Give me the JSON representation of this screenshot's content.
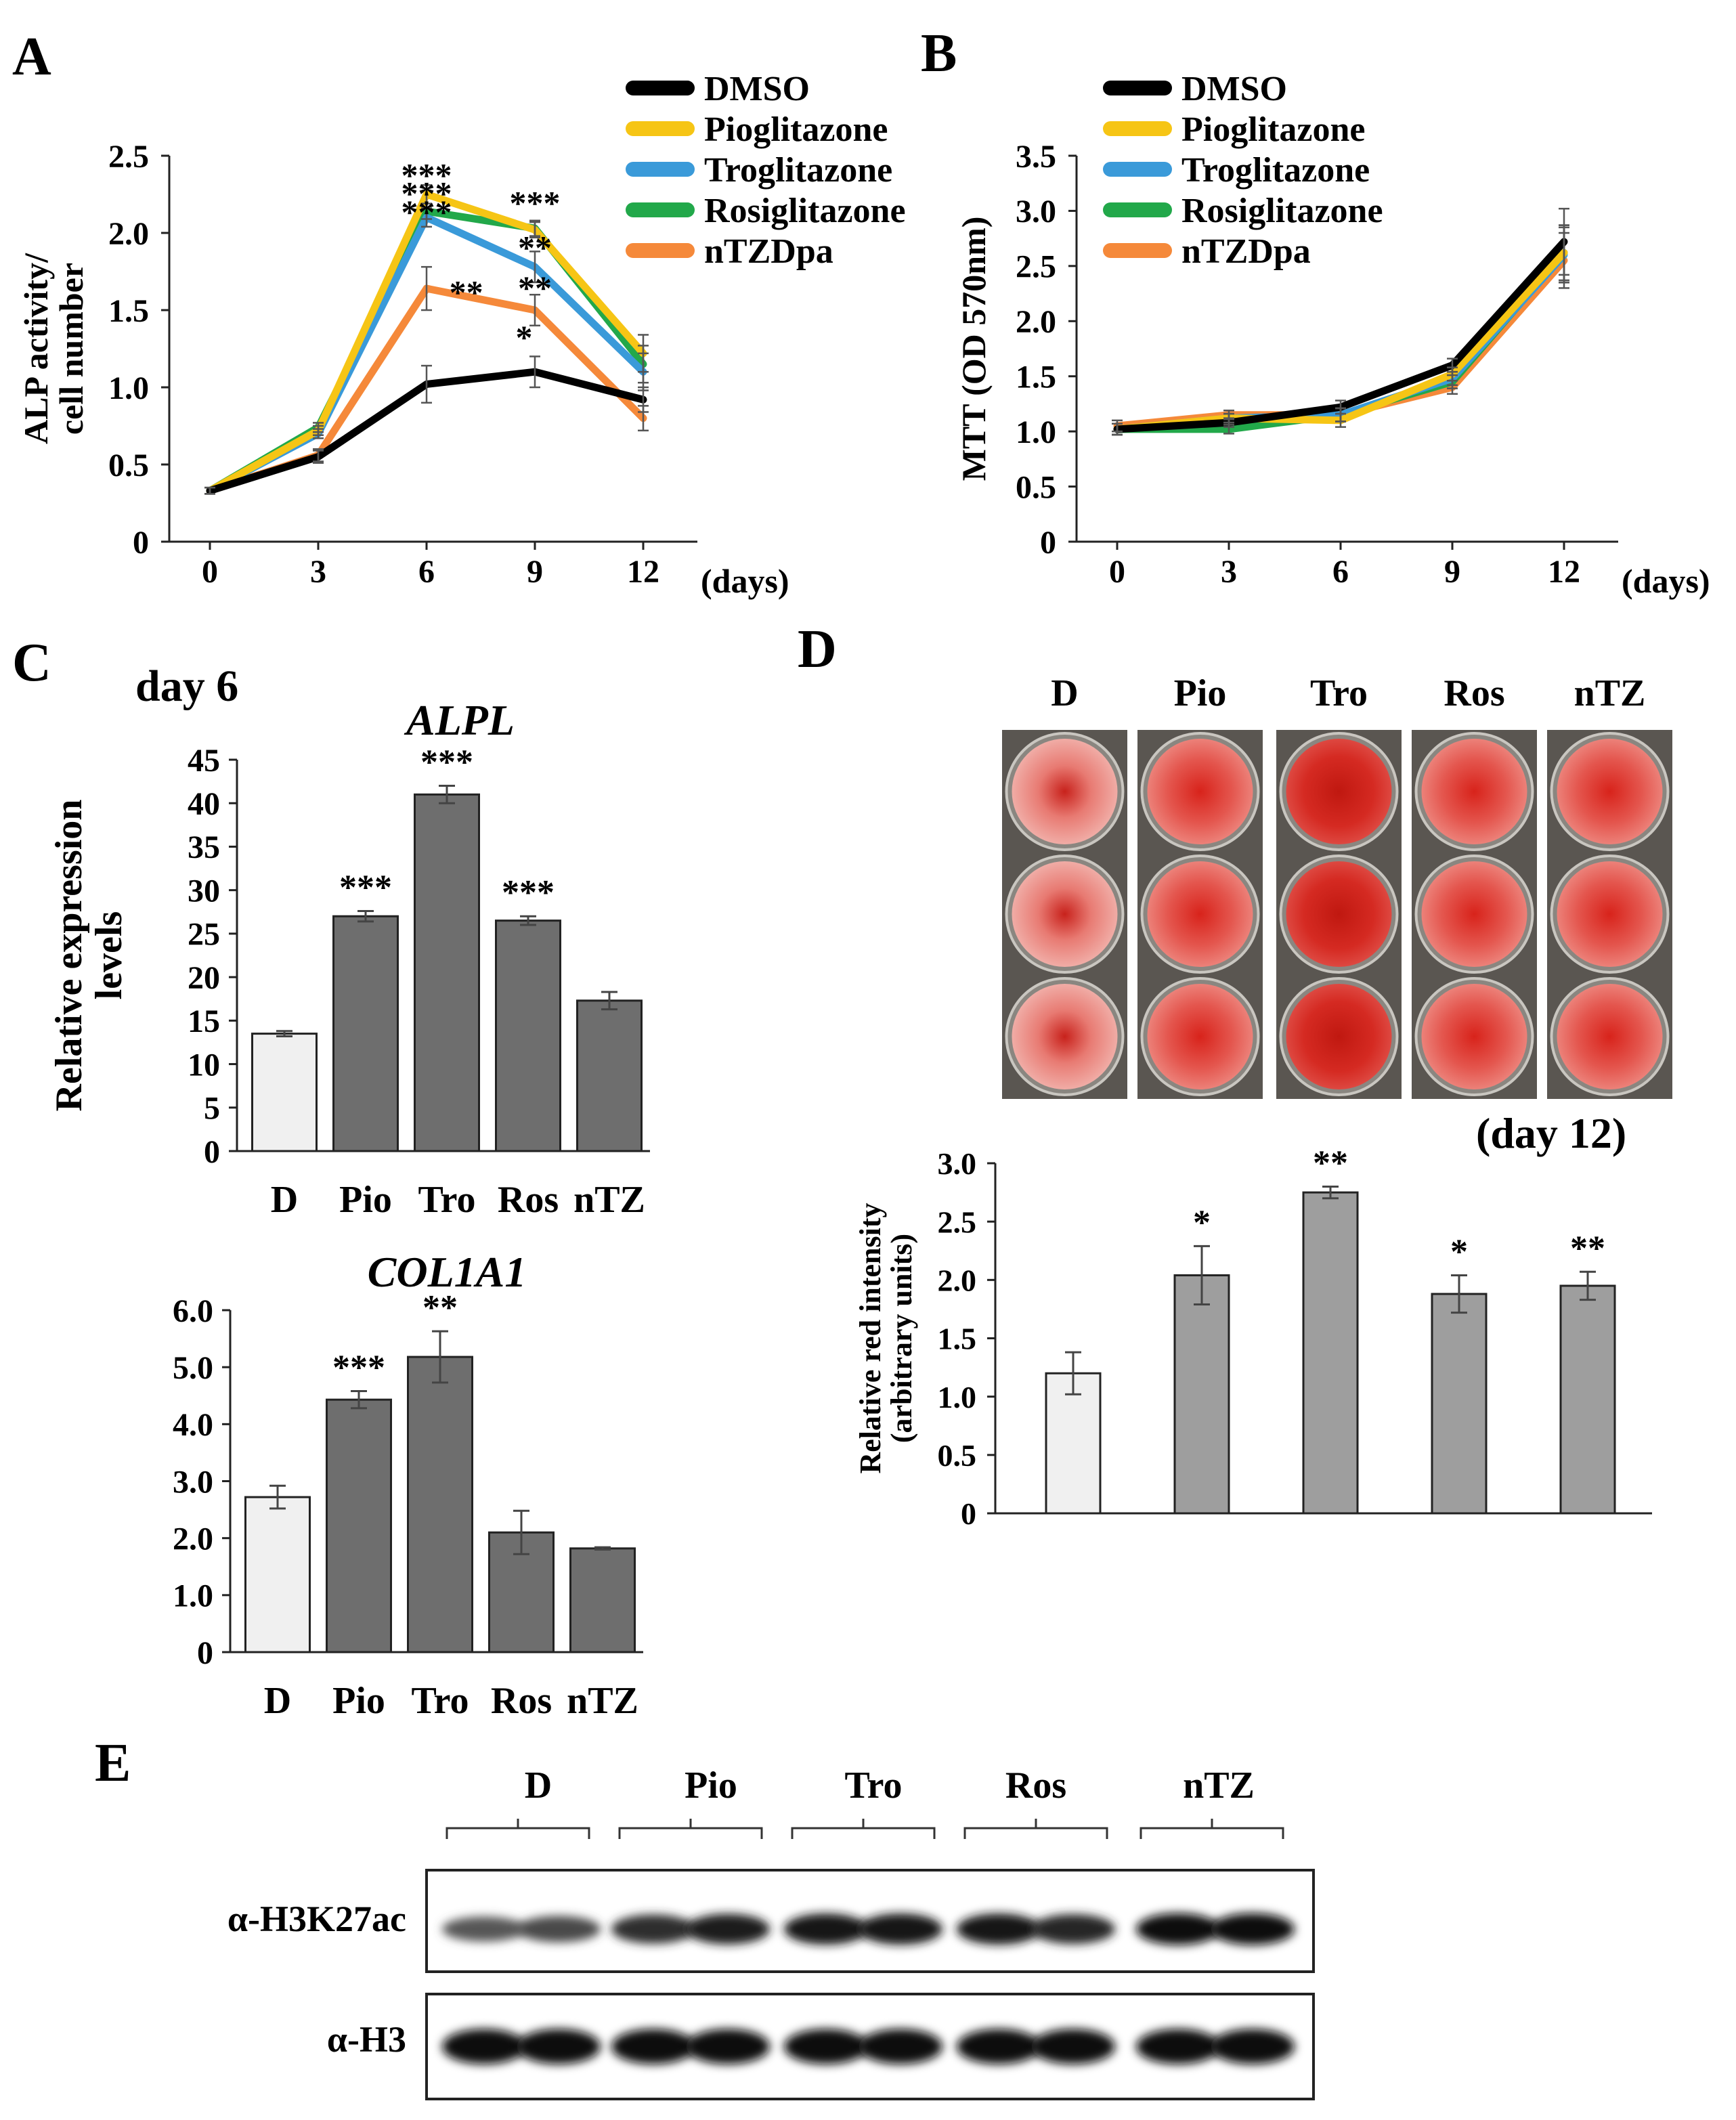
{
  "colors": {
    "DMSO": "#000000",
    "Pioglitazone": "#F6C515",
    "Troglitazone": "#3A9AD9",
    "Rosiglitazone": "#22A84A",
    "nTZDpa": "#F5893A",
    "bar_control": "#F0F0F0",
    "bar_treated_dark": "#6E6E6E",
    "bar_treated_light": "#9E9E9E",
    "stain_red": "#D8302A"
  },
  "panels": {
    "A": {
      "letter": "A"
    },
    "B": {
      "letter": "B"
    },
    "C": {
      "letter": "C",
      "subtitle": "day 6"
    },
    "D": {
      "letter": "D",
      "wells_caption": "(day 12)",
      "wells_columns": [
        "D",
        "Pio",
        "Tro",
        "Ros",
        "nTZ"
      ]
    },
    "E": {
      "letter": "E",
      "lane_groups": [
        "D",
        "Pio",
        "Tro",
        "Ros",
        "nTZ"
      ],
      "blots": [
        {
          "label": "α-H3K27ac",
          "intensities": [
            0.45,
            0.55,
            0.75,
            0.85,
            0.9,
            0.9,
            0.9,
            0.8,
            0.95,
            0.95
          ]
        },
        {
          "label": "α-H3",
          "intensities": [
            1,
            1,
            1,
            1,
            1,
            1,
            1,
            1,
            1,
            1
          ]
        }
      ]
    }
  },
  "chart_data": [
    {
      "id": "A",
      "type": "line",
      "ylabel": [
        "ALP activity/",
        "cell number"
      ],
      "xlabel": "(days)",
      "x": [
        0,
        3,
        6,
        9,
        12
      ],
      "xticks": [
        "0",
        "3",
        "6",
        "9",
        "12"
      ],
      "ylim": [
        0,
        2.5
      ],
      "yticks": [
        0,
        0.5,
        1.0,
        1.5,
        2.0,
        2.5
      ],
      "ytick_labels": [
        "0",
        "0.5",
        "1.0",
        "1.5",
        "2.0",
        "2.5"
      ],
      "series": [
        {
          "name": "DMSO",
          "values": [
            0.33,
            0.55,
            1.02,
            1.1,
            0.92
          ],
          "err": [
            0.02,
            0.04,
            0.12,
            0.1,
            0.08
          ]
        },
        {
          "name": "Pioglitazone",
          "values": [
            0.33,
            0.72,
            2.25,
            2.02,
            1.22
          ],
          "err": [
            0.02,
            0.03,
            0.06,
            0.05,
            0.12
          ]
        },
        {
          "name": "Troglitazone",
          "values": [
            0.33,
            0.7,
            2.1,
            1.78,
            1.1
          ],
          "err": [
            0.02,
            0.03,
            0.06,
            0.1,
            0.12
          ]
        },
        {
          "name": "Rosiglitazone",
          "values": [
            0.33,
            0.74,
            2.14,
            2.03,
            1.15
          ],
          "err": [
            0.02,
            0.03,
            0.05,
            0.05,
            0.12
          ]
        },
        {
          "name": "nTZDpa",
          "values": [
            0.33,
            0.56,
            1.64,
            1.5,
            0.8
          ],
          "err": [
            0.02,
            0.04,
            0.14,
            0.1,
            0.08
          ]
        }
      ],
      "annotations": [
        {
          "text": "***",
          "x": 6,
          "y": 2.38
        },
        {
          "text": "***",
          "x": 6,
          "y": 2.26
        },
        {
          "text": "***",
          "x": 6,
          "y": 2.14
        },
        {
          "text": "**",
          "x": 7.1,
          "y": 1.62
        },
        {
          "text": "***",
          "x": 9,
          "y": 2.2
        },
        {
          "text": "**",
          "x": 9,
          "y": 1.91
        },
        {
          "text": "**",
          "x": 9,
          "y": 1.65
        },
        {
          "text": "*",
          "x": 8.7,
          "y": 1.33
        }
      ]
    },
    {
      "id": "B",
      "type": "line",
      "ylabel": [
        "MTT (OD 570nm)"
      ],
      "xlabel": "(days)",
      "x": [
        0,
        3,
        6,
        9,
        12
      ],
      "xticks": [
        "0",
        "3",
        "6",
        "9",
        "12"
      ],
      "ylim": [
        0,
        3.5
      ],
      "yticks": [
        0,
        0.5,
        1.0,
        1.5,
        2.0,
        2.5,
        3.0,
        3.5
      ],
      "ytick_labels": [
        "0",
        "0.5",
        "1.0",
        "1.5",
        "2.0",
        "2.5",
        "3.0",
        "3.5"
      ],
      "series": [
        {
          "name": "DMSO",
          "values": [
            1.02,
            1.08,
            1.22,
            1.6,
            2.72
          ],
          "err": [
            0.05,
            0.04,
            0.06,
            0.06,
            0.3
          ]
        },
        {
          "name": "Pioglitazone",
          "values": [
            1.02,
            1.12,
            1.1,
            1.52,
            2.62
          ],
          "err": [
            0.05,
            0.04,
            0.06,
            0.06,
            0.25
          ]
        },
        {
          "name": "Troglitazone",
          "values": [
            1.02,
            1.12,
            1.15,
            1.48,
            2.6
          ],
          "err": [
            0.05,
            0.04,
            0.06,
            0.06,
            0.25
          ]
        },
        {
          "name": "Rosiglitazone",
          "values": [
            1.02,
            1.02,
            1.15,
            1.45,
            2.62
          ],
          "err": [
            0.05,
            0.04,
            0.06,
            0.06,
            0.25
          ]
        },
        {
          "name": "nTZDpa",
          "values": [
            1.05,
            1.15,
            1.15,
            1.4,
            2.55
          ],
          "err": [
            0.05,
            0.04,
            0.06,
            0.06,
            0.25
          ]
        }
      ]
    },
    {
      "id": "C1",
      "type": "bar",
      "title": "ALPL",
      "ylabel": [
        "Relative expression",
        "levels"
      ],
      "categories": [
        "D",
        "Pio",
        "Tro",
        "Ros",
        "nTZ"
      ],
      "values": [
        13.5,
        27.0,
        41.0,
        26.5,
        17.3
      ],
      "err": [
        0.3,
        0.6,
        1.0,
        0.5,
        1.0
      ],
      "significance": [
        "",
        "***",
        "***",
        "***",
        ""
      ],
      "ylim": [
        0,
        45
      ],
      "yticks": [
        0,
        5,
        10,
        15,
        20,
        25,
        30,
        35,
        40,
        45
      ],
      "ytick_labels": [
        "0",
        "5",
        "10",
        "15",
        "20",
        "25",
        "30",
        "35",
        "40",
        "45"
      ]
    },
    {
      "id": "C2",
      "type": "bar",
      "title": "COL1A1",
      "categories": [
        "D",
        "Pio",
        "Tro",
        "Ros",
        "nTZ"
      ],
      "values": [
        2.72,
        4.43,
        5.18,
        2.1,
        1.82
      ],
      "err": [
        0.2,
        0.15,
        0.45,
        0.38,
        0.02
      ],
      "significance": [
        "",
        "***",
        "**",
        "",
        ""
      ],
      "ylim": [
        0,
        6.0
      ],
      "yticks": [
        0,
        1,
        2,
        3,
        4,
        5,
        6
      ],
      "ytick_labels": [
        "0",
        "1.0",
        "2.0",
        "3.0",
        "4.0",
        "5.0",
        "6.0"
      ]
    },
    {
      "id": "D",
      "type": "bar",
      "ylabel": [
        "Relative  red intensity",
        "(arbitrary  units)"
      ],
      "categories": [
        "D",
        "Pio",
        "Tro",
        "Ros",
        "nTZ"
      ],
      "values": [
        1.2,
        2.04,
        2.75,
        1.88,
        1.95
      ],
      "err": [
        0.18,
        0.25,
        0.05,
        0.16,
        0.12
      ],
      "significance": [
        "",
        "*",
        "**",
        "*",
        "**"
      ],
      "ylim": [
        0,
        3.0
      ],
      "yticks": [
        0,
        0.5,
        1.0,
        1.5,
        2.0,
        2.5,
        3.0
      ],
      "ytick_labels": [
        "0",
        "0.5",
        "1.0",
        "1.5",
        "2.0",
        "2.5",
        "3.0"
      ]
    }
  ]
}
